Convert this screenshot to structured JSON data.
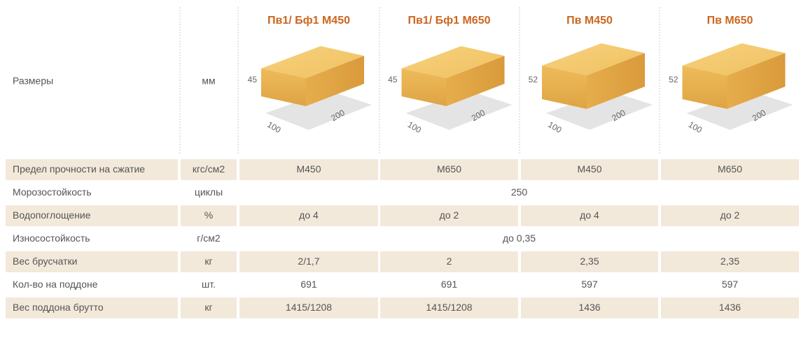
{
  "header": {
    "row_label": "Размеры",
    "unit": "мм",
    "products": [
      {
        "title": "Пв1/ Бф1 М450",
        "height": "45",
        "width": "100",
        "length": "200"
      },
      {
        "title": "Пв1/ Бф1 М650",
        "height": "45",
        "width": "100",
        "length": "200"
      },
      {
        "title": "Пв М450",
        "height": "52",
        "width": "100",
        "length": "200"
      },
      {
        "title": "Пв М650",
        "height": "52",
        "width": "100",
        "length": "200"
      }
    ]
  },
  "rows": [
    {
      "label": "Предел прочности на сжатие",
      "unit": "кгс/см2",
      "values": [
        "М450",
        "М650",
        "М450",
        "М650"
      ]
    },
    {
      "label": "Морозостойкость",
      "unit": "циклы",
      "value": "250"
    },
    {
      "label": "Водопоглощение",
      "unit": "%",
      "values": [
        "до 4",
        "до 2",
        "до 4",
        "до 2"
      ]
    },
    {
      "label": "Износостойкость",
      "unit": "г/см2",
      "value": "до 0,35"
    },
    {
      "label": "Вес брусчатки",
      "unit": "кг",
      "values": [
        "2/1,7",
        "2",
        "2,35",
        "2,35"
      ]
    },
    {
      "label": "Кол-во на поддоне",
      "unit": "шт.",
      "values": [
        "691",
        "691",
        "597",
        "597"
      ]
    },
    {
      "label": "Вес поддона брутто",
      "unit": "кг",
      "values": [
        "1415/1208",
        "1415/1208",
        "1436",
        "1436"
      ]
    }
  ]
}
